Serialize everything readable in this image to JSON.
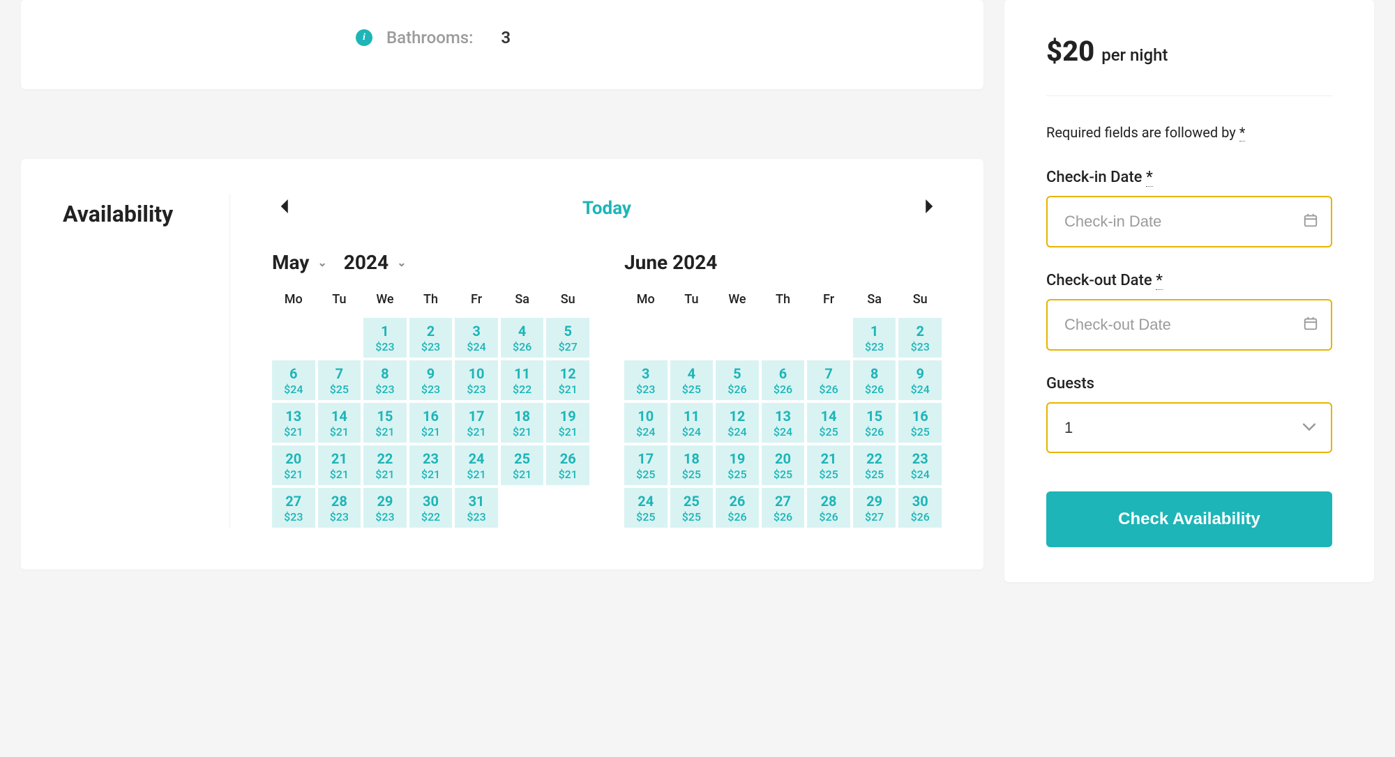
{
  "colors": {
    "accent": "#1db5b7",
    "input_border": "#e7b400",
    "day_bg": "#d9f3f3",
    "page_bg": "#f5f5f5"
  },
  "details": {
    "bathrooms_label": "Bathrooms:",
    "bathrooms_value": "3"
  },
  "availability": {
    "title": "Availability",
    "today_label": "Today",
    "dow": [
      "Mo",
      "Tu",
      "We",
      "Th",
      "Fr",
      "Sa",
      "Su"
    ],
    "months": [
      {
        "name": "May",
        "year": "2024",
        "has_dropdown": true,
        "lead_blanks": 2,
        "days": [
          {
            "d": "1",
            "p": "$23"
          },
          {
            "d": "2",
            "p": "$23"
          },
          {
            "d": "3",
            "p": "$24"
          },
          {
            "d": "4",
            "p": "$26"
          },
          {
            "d": "5",
            "p": "$27"
          },
          {
            "d": "6",
            "p": "$24"
          },
          {
            "d": "7",
            "p": "$25"
          },
          {
            "d": "8",
            "p": "$23"
          },
          {
            "d": "9",
            "p": "$23"
          },
          {
            "d": "10",
            "p": "$23"
          },
          {
            "d": "11",
            "p": "$22"
          },
          {
            "d": "12",
            "p": "$21"
          },
          {
            "d": "13",
            "p": "$21"
          },
          {
            "d": "14",
            "p": "$21"
          },
          {
            "d": "15",
            "p": "$21"
          },
          {
            "d": "16",
            "p": "$21"
          },
          {
            "d": "17",
            "p": "$21"
          },
          {
            "d": "18",
            "p": "$21"
          },
          {
            "d": "19",
            "p": "$21"
          },
          {
            "d": "20",
            "p": "$21"
          },
          {
            "d": "21",
            "p": "$21"
          },
          {
            "d": "22",
            "p": "$21"
          },
          {
            "d": "23",
            "p": "$21"
          },
          {
            "d": "24",
            "p": "$21"
          },
          {
            "d": "25",
            "p": "$21"
          },
          {
            "d": "26",
            "p": "$21"
          },
          {
            "d": "27",
            "p": "$23"
          },
          {
            "d": "28",
            "p": "$23"
          },
          {
            "d": "29",
            "p": "$23"
          },
          {
            "d": "30",
            "p": "$22"
          },
          {
            "d": "31",
            "p": "$23"
          }
        ]
      },
      {
        "name": "June 2024",
        "year": "",
        "has_dropdown": false,
        "lead_blanks": 5,
        "days": [
          {
            "d": "1",
            "p": "$23"
          },
          {
            "d": "2",
            "p": "$23"
          },
          {
            "d": "3",
            "p": "$23"
          },
          {
            "d": "4",
            "p": "$25"
          },
          {
            "d": "5",
            "p": "$26"
          },
          {
            "d": "6",
            "p": "$26"
          },
          {
            "d": "7",
            "p": "$26"
          },
          {
            "d": "8",
            "p": "$26"
          },
          {
            "d": "9",
            "p": "$24"
          },
          {
            "d": "10",
            "p": "$24"
          },
          {
            "d": "11",
            "p": "$24"
          },
          {
            "d": "12",
            "p": "$24"
          },
          {
            "d": "13",
            "p": "$24"
          },
          {
            "d": "14",
            "p": "$25"
          },
          {
            "d": "15",
            "p": "$26"
          },
          {
            "d": "16",
            "p": "$25"
          },
          {
            "d": "17",
            "p": "$25"
          },
          {
            "d": "18",
            "p": "$25"
          },
          {
            "d": "19",
            "p": "$25"
          },
          {
            "d": "20",
            "p": "$25"
          },
          {
            "d": "21",
            "p": "$25"
          },
          {
            "d": "22",
            "p": "$25"
          },
          {
            "d": "23",
            "p": "$24"
          },
          {
            "d": "24",
            "p": "$25"
          },
          {
            "d": "25",
            "p": "$25"
          },
          {
            "d": "26",
            "p": "$26"
          },
          {
            "d": "27",
            "p": "$26"
          },
          {
            "d": "28",
            "p": "$26"
          },
          {
            "d": "29",
            "p": "$27"
          },
          {
            "d": "30",
            "p": "$26"
          }
        ]
      }
    ]
  },
  "booking": {
    "price": "$20",
    "price_unit": "per night",
    "required_note": "Required fields are followed by ",
    "required_star": "*",
    "checkin_label": "Check-in Date ",
    "checkin_placeholder": "Check-in Date",
    "checkout_label": "Check-out Date ",
    "checkout_placeholder": "Check-out Date",
    "guests_label": "Guests",
    "guests_value": "1",
    "submit_label": "Check Availability"
  }
}
